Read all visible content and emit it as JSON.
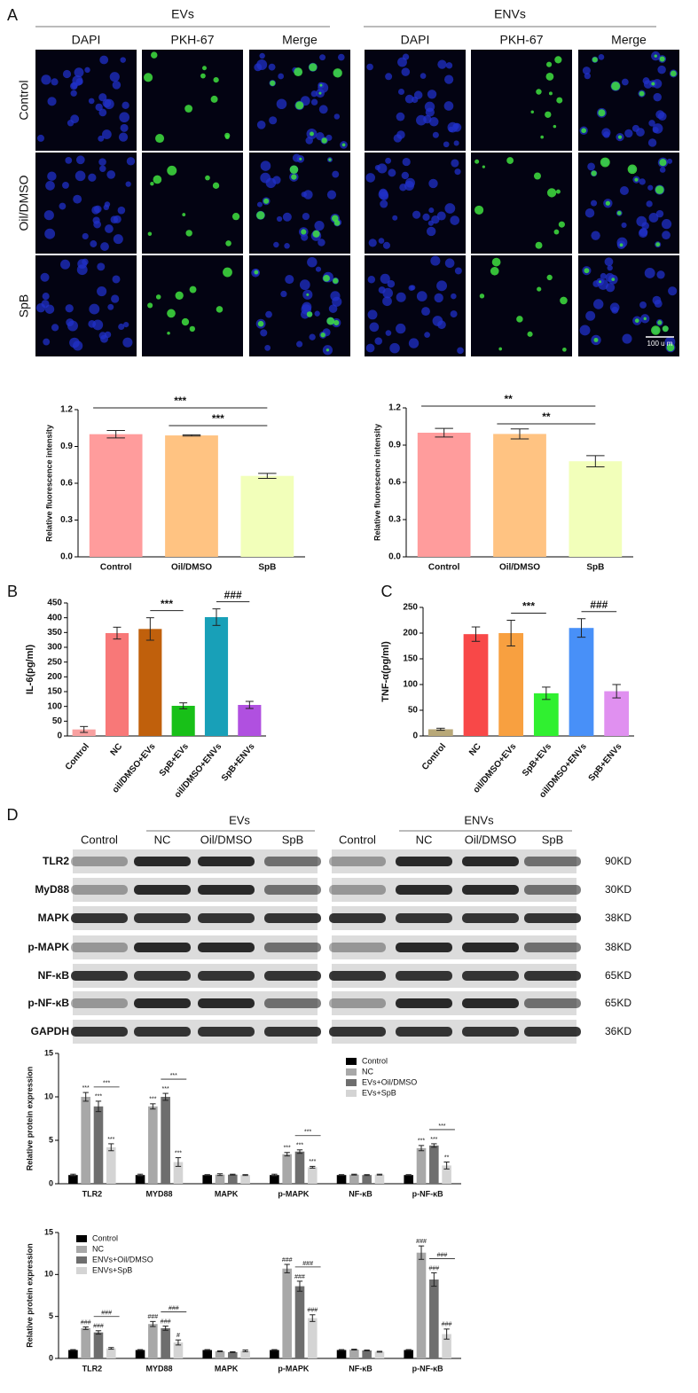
{
  "panels": {
    "a": "A",
    "b": "B",
    "c": "C",
    "d": "D"
  },
  "microscopy": {
    "groups": [
      "EVs",
      "ENVs"
    ],
    "channels": [
      "DAPI",
      "PKH-67",
      "Merge"
    ],
    "rows": [
      "Control",
      "Oil/DMSO",
      "SpB"
    ],
    "scale_bar": "100 u m"
  },
  "blot": {
    "groups": [
      "EVs",
      "ENVs"
    ],
    "lanes": [
      "Control",
      "NC",
      "Oil/DMSO",
      "SpB"
    ],
    "proteins": [
      "TLR2",
      "MyD88",
      "MAPK",
      "p-MAPK",
      "NF-κB",
      "p-NF-κB",
      "GAPDH"
    ],
    "sizes": [
      "90KD",
      "30KD",
      "38KD",
      "38KD",
      "65KD",
      "65KD",
      "36KD"
    ]
  },
  "chart_data": [
    {
      "type": "bar",
      "ylabel": "Relative fluorescence intensity",
      "categories": [
        "Control",
        "Oil/DMSO",
        "SpB"
      ],
      "values": [
        1.0,
        0.99,
        0.66
      ],
      "errors": [
        0.03,
        0.005,
        0.02
      ],
      "colors": [
        "#ff9c9c",
        "#ffc382",
        "#f2ffba"
      ],
      "ylim": [
        0,
        1.2
      ],
      "yticks": [
        {
          "value": 0,
          "label": "0.0"
        },
        0.3,
        0.6,
        0.9,
        1.2
      ],
      "annotations": [
        "***",
        "***"
      ]
    },
    {
      "type": "bar",
      "ylabel": "Relative fluorescence intensity",
      "categories": [
        "Control",
        "Oil/DMSO",
        "SpB"
      ],
      "values": [
        1.0,
        0.99,
        0.77
      ],
      "errors": [
        0.035,
        0.04,
        0.045
      ],
      "colors": [
        "#ff9c9c",
        "#ffc382",
        "#f2ffba"
      ],
      "ylim": [
        0,
        1.2
      ],
      "yticks": [
        {
          "value": 0,
          "label": "0.0"
        },
        0.3,
        0.6,
        0.9,
        1.2
      ],
      "annotations": [
        "**",
        "**"
      ]
    },
    {
      "type": "bar",
      "ylabel": "IL-6(pg/ml)",
      "categories": [
        "Control",
        "NC",
        "oil/DMSO+EVs",
        "SpB+EVs",
        "oil/DMSO+ENVs",
        "SpB+ENVs"
      ],
      "values": [
        22,
        348,
        362,
        102,
        402,
        105
      ],
      "errors": [
        10,
        20,
        38,
        10,
        28,
        12
      ],
      "colors": [
        "#f8a0a0",
        "#f87878",
        "#c0600c",
        "#18c018",
        "#18a0b8",
        "#b050e0"
      ],
      "ylim": [
        0,
        450
      ],
      "yticks": [
        0,
        50,
        100,
        150,
        200,
        250,
        300,
        350,
        400,
        450
      ],
      "annotations": [
        "***",
        "###"
      ]
    },
    {
      "type": "bar",
      "ylabel": "TNF-α(pg/ml)",
      "categories": [
        "Control",
        "NC",
        "oil/DMSO+EVs",
        "SpB+EVs",
        "oil/DMSO+ENVs",
        "SpB+ENVs"
      ],
      "values": [
        13,
        198,
        200,
        83,
        210,
        87
      ],
      "errors": [
        2,
        14,
        25,
        12,
        18,
        13
      ],
      "colors": [
        "#b8a878",
        "#f84848",
        "#f8a040",
        "#30f030",
        "#4890f8",
        "#e090f0"
      ],
      "ylim": [
        0,
        250
      ],
      "yticks": [
        0,
        50,
        100,
        150,
        200,
        250
      ],
      "annotations": [
        "***",
        "###"
      ]
    },
    {
      "type": "bar",
      "ylabel": "Relative protein expression",
      "categories": [
        "TLR2",
        "MYD88",
        "MAPK",
        "p-MAPK",
        "NF-κB",
        "p-NF-κB"
      ],
      "ylim": [
        0,
        15
      ],
      "yticks": [
        0,
        5,
        10,
        15
      ],
      "series": [
        {
          "name": "Control",
          "color": "#000000",
          "values": [
            1,
            1,
            1,
            1,
            1,
            1
          ],
          "errors": [
            0.1,
            0.1,
            0.05,
            0.1,
            0.05,
            0.05
          ],
          "markers": [
            null,
            null,
            null,
            null,
            null,
            null
          ]
        },
        {
          "name": "NC",
          "color": "#a8a8a8",
          "values": [
            10,
            8.9,
            1.05,
            3.4,
            1.05,
            4.1
          ],
          "errors": [
            0.5,
            0.3,
            0.1,
            0.2,
            0.05,
            0.3
          ],
          "markers": [
            "***",
            "***",
            null,
            "***",
            null,
            "***"
          ]
        },
        {
          "name": "EVs+Oil/DMSO",
          "color": "#6e6e6e",
          "values": [
            8.9,
            10,
            1.05,
            3.7,
            1.0,
            4.4
          ],
          "errors": [
            0.6,
            0.4,
            0.05,
            0.2,
            0.05,
            0.2
          ],
          "markers": [
            "***",
            "***",
            null,
            "***",
            null,
            "***"
          ]
        },
        {
          "name": "EVs+SpB",
          "color": "#d4d4d4",
          "values": [
            4.2,
            2.5,
            1.0,
            1.9,
            1.05,
            2.1
          ],
          "errors": [
            0.4,
            0.5,
            0.05,
            0.1,
            0.05,
            0.4
          ],
          "markers": [
            "***",
            "***",
            null,
            "***",
            null,
            "**"
          ]
        }
      ],
      "brackets": [
        "***",
        "***",
        null,
        "***",
        null,
        "***"
      ]
    },
    {
      "type": "bar",
      "ylabel": "Relative protein expression",
      "categories": [
        "TLR2",
        "MYD88",
        "MAPK",
        "p-MAPK",
        "NF-κB",
        "p-NF-κB"
      ],
      "ylim": [
        0,
        15
      ],
      "yticks": [
        0,
        5,
        10,
        15
      ],
      "series": [
        {
          "name": "Control",
          "color": "#000000",
          "values": [
            1,
            1,
            1,
            1,
            1,
            1
          ],
          "errors": [
            0.05,
            0.05,
            0.05,
            0.05,
            0.05,
            0.05
          ],
          "markers": [
            null,
            null,
            null,
            null,
            null,
            null
          ]
        },
        {
          "name": "NC",
          "color": "#a8a8a8",
          "values": [
            3.6,
            4.1,
            0.85,
            10.7,
            1.05,
            12.6
          ],
          "errors": [
            0.15,
            0.3,
            0.05,
            0.5,
            0.05,
            0.8
          ],
          "markers": [
            "###",
            "###",
            null,
            "###",
            null,
            "###"
          ]
        },
        {
          "name": "ENVs+Oil/DMSO",
          "color": "#6e6e6e",
          "values": [
            3.1,
            3.6,
            0.75,
            8.6,
            0.95,
            9.4
          ],
          "errors": [
            0.2,
            0.25,
            0.05,
            0.6,
            0.05,
            0.8
          ],
          "markers": [
            "###",
            "###",
            null,
            "###",
            null,
            "###"
          ]
        },
        {
          "name": "ENVs+SpB",
          "color": "#d4d4d4",
          "values": [
            1.2,
            1.9,
            0.9,
            4.8,
            0.8,
            2.9
          ],
          "errors": [
            0.1,
            0.3,
            0.1,
            0.4,
            0.05,
            0.6
          ],
          "markers": [
            null,
            "#",
            null,
            "###",
            null,
            "###"
          ]
        }
      ],
      "brackets": [
        "###",
        "###",
        null,
        "###",
        null,
        "###"
      ]
    }
  ]
}
